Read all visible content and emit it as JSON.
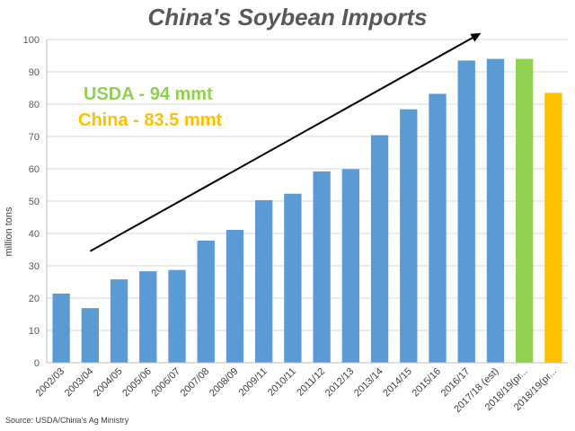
{
  "chart_data": {
    "type": "bar",
    "title": "China's Soybean Imports",
    "ylabel": "million tons",
    "xlabel": "",
    "ylim": [
      0,
      100
    ],
    "yticks": [
      0,
      10,
      20,
      30,
      40,
      50,
      60,
      70,
      80,
      90,
      100
    ],
    "grid": true,
    "categories": [
      "2002/03",
      "2003/04",
      "2004/05",
      "2005/06",
      "2006/07",
      "2007/08",
      "2008/09",
      "2009/11",
      "2010/11",
      "2011/12",
      "2012/13",
      "2013/14",
      "2014/15",
      "2015/16",
      "2016/17",
      "2017/18 (est)",
      "2018/19(pr...",
      "2018/19(pr..."
    ],
    "values": [
      21.4,
      16.9,
      25.8,
      28.3,
      28.7,
      37.8,
      41.1,
      50.3,
      52.3,
      59.2,
      59.9,
      70.4,
      78.4,
      83.2,
      93.5,
      94.0,
      94.0,
      83.5
    ],
    "bar_colors": [
      "#5b9bd5",
      "#5b9bd5",
      "#5b9bd5",
      "#5b9bd5",
      "#5b9bd5",
      "#5b9bd5",
      "#5b9bd5",
      "#5b9bd5",
      "#5b9bd5",
      "#5b9bd5",
      "#5b9bd5",
      "#5b9bd5",
      "#5b9bd5",
      "#5b9bd5",
      "#5b9bd5",
      "#5b9bd5",
      "#92d050",
      "#ffc000"
    ],
    "annotations": [
      {
        "text": "USDA - 94 mmt",
        "color": "#92d050"
      },
      {
        "text": "China - 83.5 mmt",
        "color": "#ffc000"
      }
    ],
    "trend_arrow": {
      "from_category": "2003/04",
      "from_value": 34.5,
      "to_category": "2017/18 (est)",
      "to_value": 102
    },
    "source": "Source: USDA/China's Ag Ministry"
  }
}
